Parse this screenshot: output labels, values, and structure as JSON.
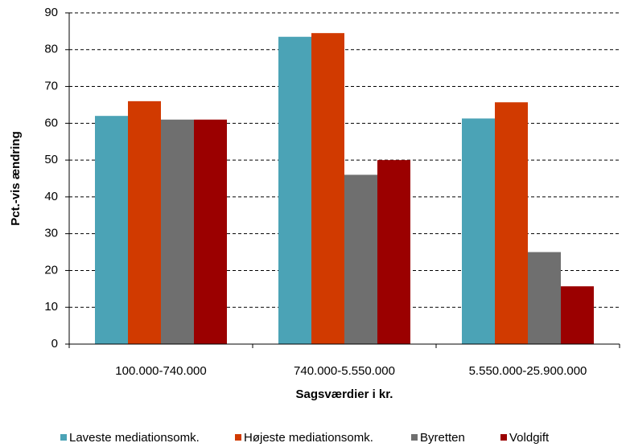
{
  "chart_data": {
    "type": "bar",
    "x_label": "Sagsværdier i kr.",
    "y_label": "Pct.-vis ændring",
    "categories": [
      "100.000-740.000",
      "740.000-5.550.000",
      "5.550.000-25.900.000"
    ],
    "series": [
      {
        "name": "Laveste mediationsomk.",
        "color": "#4ba3b6",
        "values": [
          62,
          83.5,
          61.3
        ]
      },
      {
        "name": "Højeste mediationsomk.",
        "color": "#d13a00",
        "values": [
          66,
          84.5,
          65.7
        ]
      },
      {
        "name": "Byretten",
        "color": "#6f6f6f",
        "values": [
          61,
          46,
          25
        ]
      },
      {
        "name": "Voldgift",
        "color": "#9b0000",
        "values": [
          61,
          50,
          15.7
        ]
      }
    ],
    "ylim": [
      0,
      90
    ],
    "yticks": [
      0,
      10,
      20,
      30,
      40,
      50,
      60,
      70,
      80,
      90
    ],
    "grid": true,
    "legend": "bottom"
  }
}
